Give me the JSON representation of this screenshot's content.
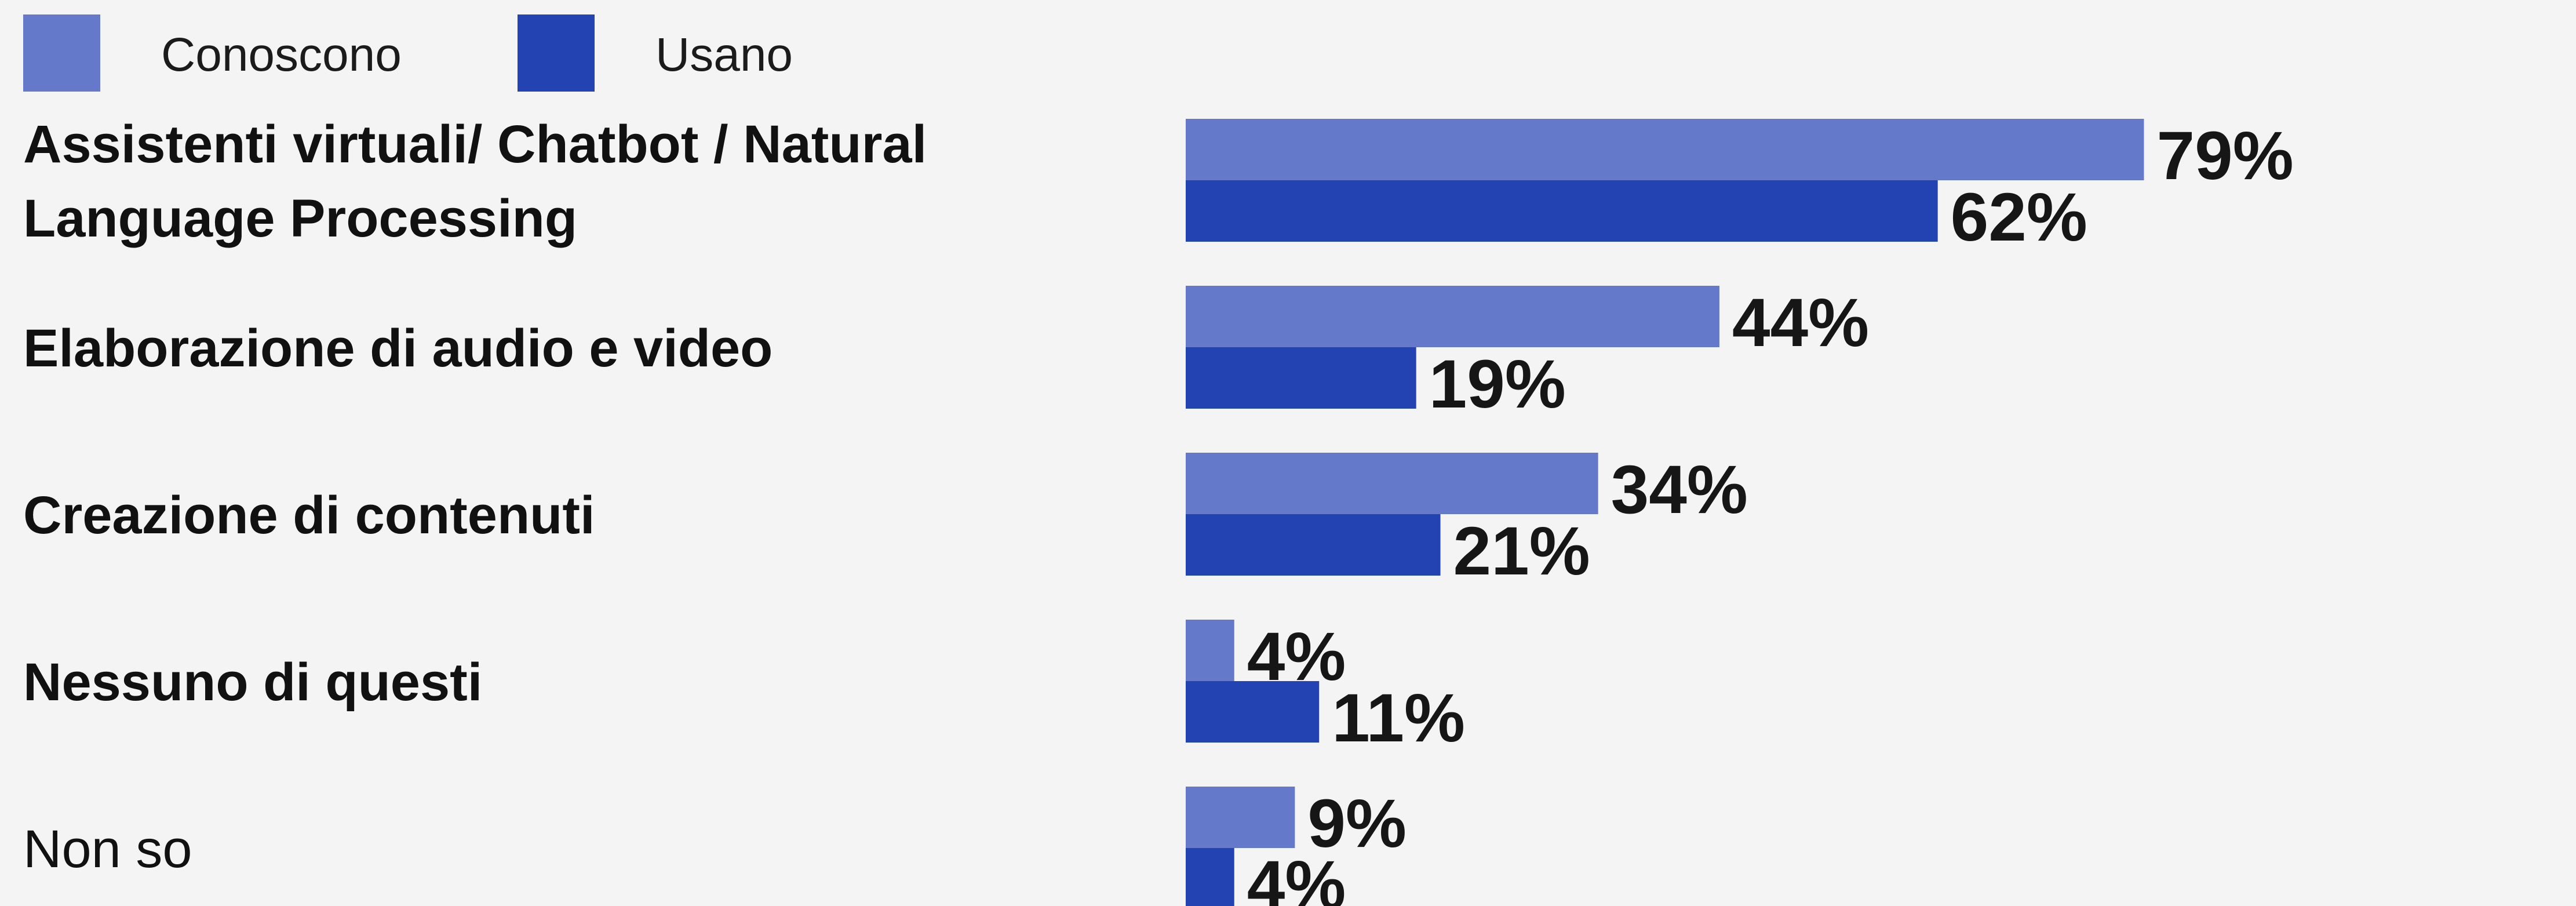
{
  "colors": {
    "background": "#f4f4f4",
    "conoscono": "#6479c9",
    "usano": "#2343b3"
  },
  "chart_data": {
    "type": "bar",
    "orientation": "horizontal",
    "categories": [
      [
        "Assistenti virtuali/ Chatbot / Natural",
        "Language Processing"
      ],
      [
        "Elaborazione di audio e video"
      ],
      [
        "Creazione di contenuti"
      ],
      [
        "Nessuno di questi"
      ],
      [
        "Non so"
      ]
    ],
    "category_bold": [
      true,
      true,
      true,
      true,
      false
    ],
    "series": [
      {
        "name": "Conoscono",
        "color": "#6479c9",
        "values": [
          79,
          44,
          34,
          4,
          9
        ]
      },
      {
        "name": "Usano",
        "color": "#2343b3",
        "values": [
          62,
          19,
          21,
          11,
          4
        ]
      }
    ],
    "value_suffix": "%",
    "xlim": [
      0,
      100
    ],
    "grid": false,
    "legend": "top-left"
  }
}
